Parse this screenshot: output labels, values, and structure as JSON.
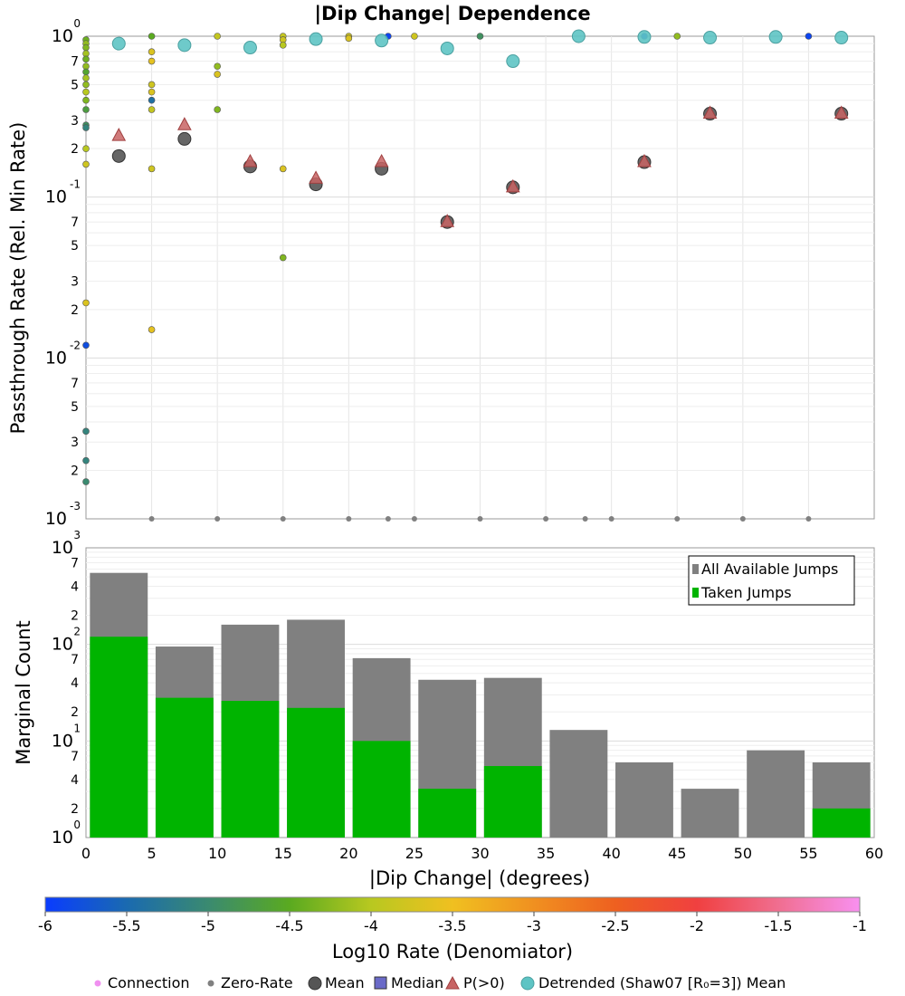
{
  "top_chart": {
    "title": "|Dip Change| Dependence",
    "ylabel": "Passthrough Rate (Rel. Min Rate)"
  },
  "bottom_chart": {
    "ylabel": "Marginal Count",
    "xlabel": "|Dip Change| (degrees)"
  },
  "colorbar": {
    "label": "Log10 Rate (Denomiator)",
    "ticks": [
      "-6",
      "-5.5",
      "-5",
      "-4.5",
      "-4",
      "-3.5",
      "-3",
      "-2.5",
      "-2",
      "-1.5",
      "-1"
    ]
  },
  "bottom_legend": {
    "connection": "Connection",
    "zero_rate": "Zero-Rate",
    "mean": "Mean",
    "median": "Median",
    "p_gt_0": "P(>0)",
    "detrended": "Detrended (Shaw07 [R₀=3]) Mean"
  },
  "colors": {
    "mean": "#555555",
    "p_gt_0": "#c86464",
    "detrended": "#5ec4c4",
    "all_jumps": "#808080",
    "taken_jumps": "#00b400",
    "connection": "#f090f0",
    "zero_rate": "#808080",
    "median": "#6a6ac8"
  },
  "chart_data": [
    {
      "type": "scatter",
      "title": "|Dip Change| Dependence",
      "xlabel": "",
      "ylabel": "Passthrough Rate (Rel. Min Rate)",
      "xlim": [
        0,
        60
      ],
      "ylim": [
        0.001,
        1
      ],
      "yscale": "log",
      "y_tick_labels": [
        "10^0",
        "10^-1",
        "10^-2",
        "10^-3",
        "7",
        "5",
        "3",
        "2"
      ],
      "grid": true,
      "series": [
        {
          "name": "Mean",
          "x": [
            2.5,
            7.5,
            12.5,
            17.5,
            22.5,
            27.5,
            32.5,
            42.5,
            47.5,
            57.5
          ],
          "y": [
            0.18,
            0.23,
            0.155,
            0.12,
            0.15,
            0.07,
            0.115,
            0.165,
            0.33,
            0.33
          ]
        },
        {
          "name": "P(>0)",
          "x": [
            2.5,
            7.5,
            12.5,
            17.5,
            22.5,
            27.5,
            32.5,
            42.5,
            47.5,
            57.5
          ],
          "y": [
            0.24,
            0.28,
            0.165,
            0.13,
            0.165,
            0.07,
            0.115,
            0.165,
            0.33,
            0.33
          ]
        },
        {
          "name": "Detrended (Shaw07 [R₀=3]) Mean",
          "x": [
            2.5,
            7.5,
            12.5,
            17.5,
            22.5,
            27.5,
            32.5,
            37.5,
            42.5,
            47.5,
            52.5,
            57.5
          ],
          "y": [
            0.9,
            0.88,
            0.85,
            0.96,
            0.94,
            0.84,
            0.7,
            1.0,
            0.99,
            0.98,
            0.99,
            0.98
          ]
        },
        {
          "name": "Connection",
          "x": [
            0,
            0,
            0,
            0,
            0,
            0,
            0,
            0,
            0,
            0,
            0,
            0,
            0,
            0,
            0,
            0,
            0,
            0,
            0,
            0,
            0,
            5,
            5,
            5,
            5,
            5,
            5,
            5,
            5,
            5,
            10,
            10,
            10,
            10,
            15,
            15,
            15,
            15,
            15,
            20,
            20,
            23,
            25,
            30,
            42.5,
            45,
            55
          ],
          "y": [
            0.95,
            0.9,
            0.85,
            0.78,
            0.72,
            0.65,
            0.6,
            0.55,
            0.5,
            0.45,
            0.4,
            0.35,
            0.28,
            0.27,
            0.2,
            0.16,
            0.022,
            0.012,
            0.0035,
            0.0023,
            0.0017,
            1.0,
            0.8,
            0.7,
            0.5,
            0.45,
            0.4,
            0.35,
            0.15,
            0.015,
            1.0,
            0.65,
            0.58,
            0.35,
            1.0,
            0.95,
            0.88,
            0.15,
            0.042,
            1.0,
            0.97,
            1.0,
            1.0,
            1.0,
            1.0,
            1.0,
            1.0
          ],
          "log10_rate": [
            -4.4,
            -4.2,
            -4.3,
            -4.1,
            -4.4,
            -4.2,
            -4.6,
            -4.1,
            -4.2,
            -4.0,
            -4.3,
            -4.7,
            -4.9,
            -5.1,
            -4.0,
            -3.8,
            -3.7,
            -5.8,
            -5.1,
            -5.1,
            -5.0,
            -4.5,
            -3.7,
            -3.6,
            -3.8,
            -3.7,
            -5.4,
            -3.9,
            -3.8,
            -3.6,
            -3.9,
            -4.2,
            -3.7,
            -4.3,
            -3.9,
            -3.8,
            -4.0,
            -3.7,
            -4.3,
            -3.8,
            -3.7,
            -5.9,
            -3.8,
            -4.9,
            -5.8,
            -4.2,
            -5.9
          ]
        },
        {
          "name": "Zero-Rate",
          "x": [
            5,
            10,
            15,
            20,
            23,
            25,
            30,
            35,
            38,
            40,
            45,
            50,
            55
          ],
          "y": [
            0.001,
            0.001,
            0.001,
            0.001,
            0.001,
            0.001,
            0.001,
            0.001,
            0.001,
            0.001,
            0.001,
            0.001,
            0.001
          ]
        }
      ]
    },
    {
      "type": "bar",
      "xlabel": "|Dip Change| (degrees)",
      "ylabel": "Marginal Count",
      "xlim": [
        0,
        60
      ],
      "ylim": [
        1,
        1000
      ],
      "yscale": "log",
      "x_ticks": [
        "0",
        "5",
        "10",
        "15",
        "20",
        "25",
        "30",
        "35",
        "40",
        "45",
        "50",
        "55",
        "60"
      ],
      "y_tick_labels": [
        "10^3",
        "10^2",
        "10^1",
        "10^0",
        "7",
        "4",
        "2"
      ],
      "legend_position": "top-right",
      "categories": [
        "0-5",
        "5-10",
        "10-15",
        "15-20",
        "20-25",
        "25-30",
        "30-35",
        "35-40",
        "40-45",
        "45-50",
        "50-55",
        "55-60"
      ],
      "series": [
        {
          "name": "All Available Jumps",
          "values": [
            550,
            95,
            160,
            180,
            72,
            43,
            45,
            13,
            6,
            3.2,
            8,
            6
          ]
        },
        {
          "name": "Taken Jumps",
          "values": [
            120,
            28,
            26,
            22,
            10,
            3.2,
            5.5,
            0,
            0,
            0,
            0,
            2
          ]
        }
      ]
    }
  ]
}
